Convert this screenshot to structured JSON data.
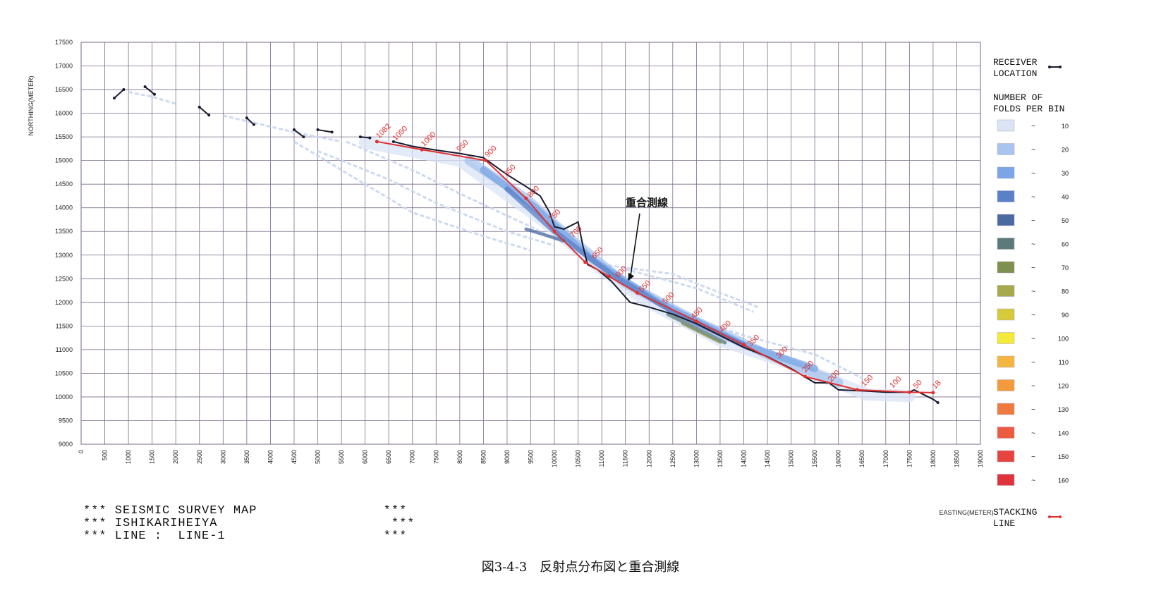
{
  "chart_data": {
    "type": "scatter",
    "title": "",
    "xlabel": "EASTING(METER)",
    "ylabel": "NORTHING(METER)",
    "xlim": [
      0,
      19000
    ],
    "ylim": [
      9000,
      17500
    ],
    "x_ticks": [
      0,
      500,
      1000,
      1500,
      2000,
      2500,
      3000,
      3500,
      4000,
      4500,
      5000,
      5500,
      6000,
      6500,
      7000,
      7500,
      8000,
      8500,
      9000,
      9500,
      10000,
      10500,
      11000,
      11500,
      12000,
      12500,
      13000,
      13500,
      14000,
      14500,
      15000,
      15500,
      16000,
      16500,
      17000,
      17500,
      18000,
      18500,
      19000
    ],
    "y_ticks": [
      9000,
      9500,
      10000,
      10500,
      11000,
      11500,
      12000,
      12500,
      13000,
      13500,
      14000,
      14500,
      15000,
      15500,
      16000,
      16500,
      17000,
      17500
    ],
    "grid": true,
    "legend_position": "right",
    "receiver_location": {
      "name": "RECEIVER LOCATION",
      "color": "#1a1a2e",
      "segments": [
        [
          [
            700,
            16320
          ],
          [
            900,
            16500
          ]
        ],
        [
          [
            1350,
            16560
          ],
          [
            1550,
            16400
          ]
        ],
        [
          [
            2500,
            16130
          ],
          [
            2700,
            15960
          ]
        ],
        [
          [
            3500,
            15900
          ],
          [
            3650,
            15760
          ]
        ],
        [
          [
            4500,
            15650
          ],
          [
            4700,
            15500
          ]
        ],
        [
          [
            5000,
            15650
          ],
          [
            5300,
            15600
          ]
        ],
        [
          [
            5900,
            15500
          ],
          [
            6100,
            15480
          ]
        ],
        [
          [
            6600,
            15400
          ],
          [
            7000,
            15300
          ],
          [
            7500,
            15220
          ],
          [
            8000,
            15150
          ],
          [
            8500,
            15060
          ],
          [
            9000,
            14700
          ],
          [
            9400,
            14450
          ],
          [
            9700,
            14250
          ],
          [
            9900,
            13900
          ],
          [
            10000,
            13600
          ],
          [
            10200,
            13550
          ],
          [
            10500,
            13700
          ],
          [
            10600,
            13200
          ],
          [
            10700,
            12800
          ],
          [
            10900,
            12700
          ],
          [
            11200,
            12450
          ],
          [
            11600,
            12000
          ],
          [
            12000,
            11900
          ],
          [
            12500,
            11750
          ],
          [
            13000,
            11550
          ],
          [
            13500,
            11300
          ],
          [
            14000,
            11050
          ],
          [
            14500,
            10850
          ],
          [
            15000,
            10600
          ],
          [
            15500,
            10300
          ],
          [
            15800,
            10300
          ],
          [
            16000,
            10150
          ],
          [
            16500,
            10130
          ],
          [
            17000,
            10100
          ],
          [
            17500,
            10100
          ],
          [
            17600,
            10150
          ],
          [
            18000,
            9950
          ],
          [
            18100,
            9880
          ]
        ]
      ]
    },
    "stacking_line": {
      "name": "STACKING LINE",
      "color": "#e03030",
      "points": [
        [
          6250,
          15400
        ],
        [
          7200,
          15230
        ],
        [
          8550,
          15000
        ],
        [
          9400,
          14200
        ],
        [
          10000,
          13500
        ],
        [
          10650,
          12850
        ],
        [
          11150,
          12550
        ],
        [
          11750,
          12200
        ],
        [
          13000,
          11600
        ],
        [
          14000,
          11100
        ],
        [
          15300,
          10430
        ],
        [
          16400,
          10150
        ],
        [
          17500,
          10100
        ],
        [
          18000,
          10090
        ]
      ],
      "labels": [
        {
          "x": 6250,
          "y": 15400,
          "text": "1082"
        },
        {
          "x": 6600,
          "y": 15350,
          "text": "1050"
        },
        {
          "x": 7200,
          "y": 15230,
          "text": "1000"
        },
        {
          "x": 7950,
          "y": 15120,
          "text": "950"
        },
        {
          "x": 8550,
          "y": 15000,
          "text": "900"
        },
        {
          "x": 8950,
          "y": 14600,
          "text": "850"
        },
        {
          "x": 9450,
          "y": 14150,
          "text": "800"
        },
        {
          "x": 9900,
          "y": 13650,
          "text": "750"
        },
        {
          "x": 10350,
          "y": 13300,
          "text": "700"
        },
        {
          "x": 10800,
          "y": 12850,
          "text": "650"
        },
        {
          "x": 11300,
          "y": 12450,
          "text": "600"
        },
        {
          "x": 11800,
          "y": 12150,
          "text": "550"
        },
        {
          "x": 12300,
          "y": 11900,
          "text": "500"
        },
        {
          "x": 12900,
          "y": 11580,
          "text": "450"
        },
        {
          "x": 13500,
          "y": 11300,
          "text": "400"
        },
        {
          "x": 14100,
          "y": 11000,
          "text": "350"
        },
        {
          "x": 14700,
          "y": 10750,
          "text": "300"
        },
        {
          "x": 15250,
          "y": 10450,
          "text": "250"
        },
        {
          "x": 15800,
          "y": 10250,
          "text": "200"
        },
        {
          "x": 16500,
          "y": 10150,
          "text": "150"
        },
        {
          "x": 17100,
          "y": 10120,
          "text": "100"
        },
        {
          "x": 17600,
          "y": 10110,
          "text": "50"
        },
        {
          "x": 18000,
          "y": 10100,
          "text": "18"
        }
      ]
    },
    "fold_bands": [
      {
        "fold_bin": 10,
        "points": [
          [
            6000,
            15380
          ],
          [
            8000,
            15000
          ],
          [
            9800,
            13700
          ],
          [
            11000,
            12700
          ],
          [
            12000,
            12000
          ],
          [
            13500,
            11200
          ],
          [
            15000,
            10700
          ],
          [
            16600,
            10050
          ],
          [
            17500,
            10020
          ]
        ],
        "width": 260
      },
      {
        "fold_bin": 20,
        "points": [
          [
            8200,
            15000
          ],
          [
            9400,
            14200
          ],
          [
            10400,
            13300
          ],
          [
            11500,
            12400
          ],
          [
            13000,
            11600
          ],
          [
            14500,
            10900
          ],
          [
            16000,
            10300
          ]
        ],
        "width": 200
      },
      {
        "fold_bin": 30,
        "points": [
          [
            8500,
            14800
          ],
          [
            9600,
            14000
          ],
          [
            10800,
            12900
          ],
          [
            12200,
            12000
          ],
          [
            14000,
            11100
          ],
          [
            15500,
            10600
          ]
        ],
        "width": 150
      },
      {
        "fold_bin": 40,
        "points": [
          [
            9000,
            14400
          ],
          [
            10000,
            13500
          ],
          [
            11200,
            12600
          ],
          [
            12500,
            11800
          ],
          [
            14000,
            11100
          ]
        ],
        "width": 110
      },
      {
        "fold_bin": 50,
        "points": [
          [
            9400,
            13550
          ],
          [
            10200,
            13300
          ]
        ],
        "width": 70
      },
      {
        "fold_bin": 60,
        "points": [
          [
            12400,
            11750
          ],
          [
            13600,
            11150
          ]
        ],
        "width": 80
      },
      {
        "fold_bin": 70,
        "points": [
          [
            12700,
            11550
          ],
          [
            13500,
            11150
          ]
        ],
        "width": 50
      }
    ],
    "side_traces": [
      [
        [
          5600,
          15400
        ],
        [
          7000,
          14800
        ],
        [
          8000,
          14300
        ],
        [
          9500,
          13600
        ],
        [
          10500,
          13100
        ]
      ],
      [
        [
          5000,
          15200
        ],
        [
          6500,
          14600
        ],
        [
          7500,
          14100
        ],
        [
          9000,
          13500
        ],
        [
          10000,
          13200
        ]
      ],
      [
        [
          4500,
          15400
        ],
        [
          6000,
          14500
        ],
        [
          7000,
          13900
        ],
        [
          8500,
          13400
        ],
        [
          9500,
          13100
        ]
      ],
      [
        [
          3000,
          15950
        ],
        [
          4500,
          15600
        ],
        [
          5500,
          15400
        ]
      ],
      [
        [
          1000,
          16450
        ],
        [
          1500,
          16350
        ],
        [
          2000,
          16200
        ]
      ],
      [
        [
          11000,
          12800
        ],
        [
          12500,
          12600
        ],
        [
          13500,
          12200
        ],
        [
          14300,
          11900
        ]
      ],
      [
        [
          11500,
          12700
        ],
        [
          13000,
          12300
        ],
        [
          14200,
          11800
        ]
      ],
      [
        [
          12800,
          11700
        ],
        [
          14000,
          11300
        ],
        [
          15500,
          10900
        ],
        [
          16500,
          10400
        ]
      ]
    ],
    "legend": {
      "receiver_title": [
        "RECEIVER",
        "LOCATION"
      ],
      "folds_title": [
        "NUMBER OF",
        "FOLDS PER BIN"
      ],
      "fold_bins": [
        {
          "value": "10",
          "color": "#dbe4f5"
        },
        {
          "value": "20",
          "color": "#a9c4ee"
        },
        {
          "value": "30",
          "color": "#7ba5e6"
        },
        {
          "value": "40",
          "color": "#5a80c8"
        },
        {
          "value": "50",
          "color": "#4a6aa0"
        },
        {
          "value": "60",
          "color": "#5d7a7a"
        },
        {
          "value": "70",
          "color": "#7f8f4e"
        },
        {
          "value": "80",
          "color": "#a6aa4a"
        },
        {
          "value": "90",
          "color": "#d6c93a"
        },
        {
          "value": "100",
          "color": "#f4ea3a"
        },
        {
          "value": "110",
          "color": "#f5b640"
        },
        {
          "value": "120",
          "color": "#f29a3c"
        },
        {
          "value": "130",
          "color": "#ef7a3e"
        },
        {
          "value": "140",
          "color": "#ec5a40"
        },
        {
          "value": "150",
          "color": "#e8443f"
        },
        {
          "value": "160",
          "color": "#e0323d"
        }
      ],
      "stacking_title": [
        "STACKING",
        "LINE"
      ],
      "tilde": "~"
    },
    "annotation": {
      "text": "重合測線",
      "x": 11550,
      "y": 12450,
      "label_x": 12100,
      "label_y": 14000
    }
  },
  "info_block": {
    "rows": [
      {
        "left": "*** SEISMIC SURVEY MAP",
        "right": "***"
      },
      {
        "left": "*** ISHIKARIHEIYA",
        "right": "***"
      },
      {
        "left": "*** LINE :  LINE-1",
        "right": "***"
      }
    ]
  },
  "caption": "図3-4-3　反射点分布図と重合測線"
}
